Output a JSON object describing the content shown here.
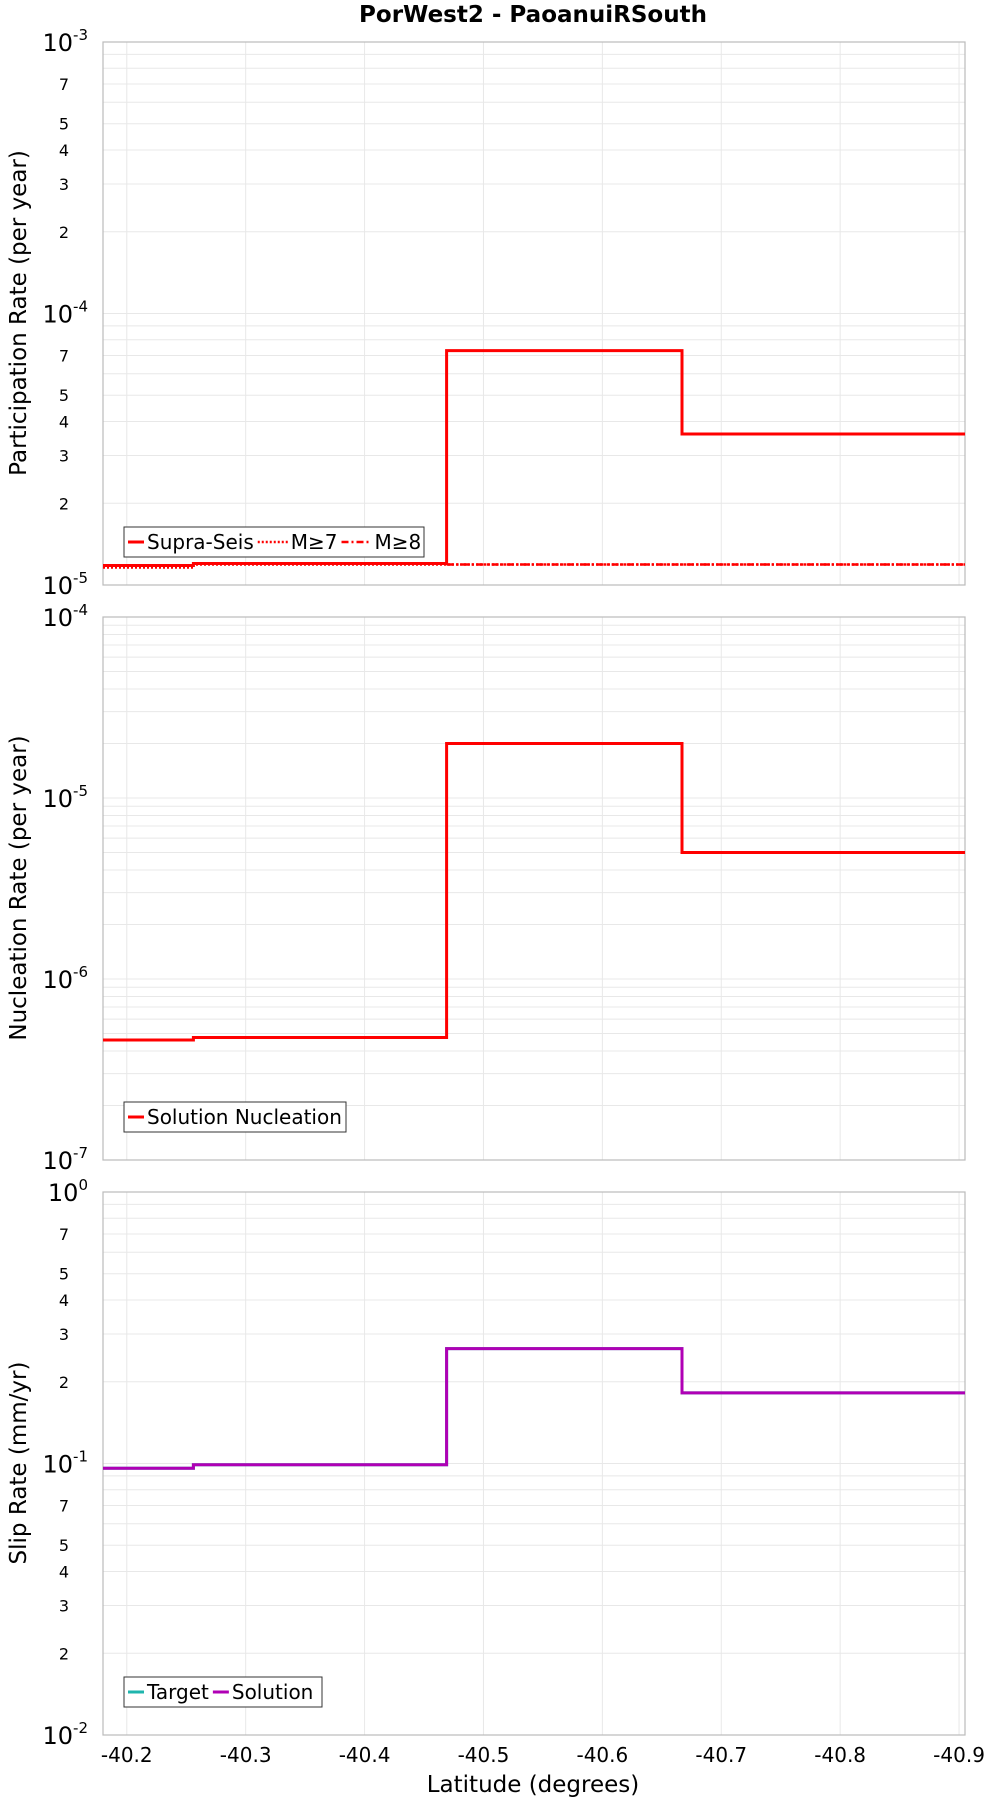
{
  "title": "PorWest2 - PaoanuiRSouth",
  "xlabel": "Latitude (degrees)",
  "x_ticks": [
    -40.2,
    -40.3,
    -40.4,
    -40.5,
    -40.6,
    -40.7,
    -40.8,
    -40.9
  ],
  "x_tick_labels": [
    "-40.2",
    "-40.3",
    "-40.4",
    "-40.5",
    "-40.6",
    "-40.7",
    "-40.8",
    "-40.9"
  ],
  "colors": {
    "red": "#ff0000",
    "pink": "#f4a0a0",
    "teal": "#1fb5ad",
    "purple": "#b000b5",
    "grid": "#e8e8e8",
    "frame": "#bbbbbb"
  },
  "chart_data": [
    {
      "type": "line",
      "step": true,
      "ylabel": "Participation Rate (per year)",
      "yscale": "log",
      "ylim": [
        1e-05,
        0.001
      ],
      "xlim": [
        -40.18,
        -40.905
      ],
      "y_major_ticks": [
        {
          "base": "10",
          "exp": "-5",
          "value": 1e-05
        },
        {
          "base": "10",
          "exp": "-4",
          "value": 0.0001
        },
        {
          "base": "10",
          "exp": "-3",
          "value": 0.001
        }
      ],
      "y_minor_labels": [
        "2",
        "3",
        "4",
        "5",
        "7"
      ],
      "legend": {
        "position": "bottom-left",
        "entries": [
          "Supra-Seis",
          "M≥7",
          "M≥8"
        ]
      },
      "series": [
        {
          "name": "Supra-Seis",
          "style": "solid",
          "color": "#ff0000",
          "x": [
            -40.18,
            -40.256,
            -40.256,
            -40.469,
            -40.469,
            -40.667,
            -40.667,
            -40.905
          ],
          "y": [
            1.18e-05,
            1.18e-05,
            1.2e-05,
            1.2e-05,
            7.3e-05,
            7.3e-05,
            3.6e-05,
            3.6e-05
          ]
        },
        {
          "name": "M≥7",
          "style": "dotted",
          "color": "#ff0000",
          "x": [
            -40.18,
            -40.256,
            -40.256,
            -40.469,
            -40.469,
            -40.905
          ],
          "y": [
            1.16e-05,
            1.16e-05,
            1.19e-05,
            1.19e-05,
            1.19e-05,
            1.19e-05
          ]
        },
        {
          "name": "M≥8",
          "style": "dashdot",
          "color": "#ff0000",
          "x": [
            -40.469,
            -40.905
          ],
          "y": [
            1.19e-05,
            1.19e-05
          ]
        }
      ]
    },
    {
      "type": "line",
      "step": true,
      "ylabel": "Nucleation Rate (per year)",
      "yscale": "log",
      "ylim": [
        1e-07,
        0.0001
      ],
      "xlim": [
        -40.18,
        -40.905
      ],
      "y_major_ticks": [
        {
          "base": "10",
          "exp": "-7",
          "value": 1e-07
        },
        {
          "base": "10",
          "exp": "-6",
          "value": 1e-06
        },
        {
          "base": "10",
          "exp": "-5",
          "value": 1e-05
        },
        {
          "base": "10",
          "exp": "-4",
          "value": 0.0001
        }
      ],
      "y_minor_labels": [],
      "legend": {
        "position": "bottom-left",
        "entries": [
          "Solution Nucleation"
        ]
      },
      "series": [
        {
          "name": "Solution Nucleation",
          "style": "solid",
          "color": "#ff0000",
          "x": [
            -40.18,
            -40.256,
            -40.256,
            -40.469,
            -40.469,
            -40.667,
            -40.667,
            -40.905
          ],
          "y": [
            4.6e-07,
            4.6e-07,
            4.75e-07,
            4.75e-07,
            2e-05,
            2e-05,
            5e-06,
            5e-06
          ]
        }
      ]
    },
    {
      "type": "line",
      "step": true,
      "ylabel": "Slip Rate (mm/yr)",
      "yscale": "log",
      "ylim": [
        0.01,
        1
      ],
      "xlim": [
        -40.18,
        -40.905
      ],
      "y_major_ticks": [
        {
          "base": "10",
          "exp": "-2",
          "value": 0.01
        },
        {
          "base": "10",
          "exp": "-1",
          "value": 0.1
        },
        {
          "base": "10",
          "exp": "0",
          "value": 1
        }
      ],
      "y_minor_labels": [
        "2",
        "3",
        "4",
        "5",
        "7"
      ],
      "legend": {
        "position": "bottom-left",
        "entries": [
          "Target",
          "Solution"
        ]
      },
      "series": [
        {
          "name": "Target",
          "style": "solid",
          "color": "#1fb5ad",
          "x": [
            -40.18,
            -40.256,
            -40.256,
            -40.469,
            -40.469,
            -40.667,
            -40.667,
            -40.905
          ],
          "y": [
            0.096,
            0.096,
            0.099,
            0.099,
            0.265,
            0.265,
            0.182,
            0.182
          ]
        },
        {
          "name": "Solution",
          "style": "solid",
          "color": "#b000b5",
          "x": [
            -40.18,
            -40.256,
            -40.256,
            -40.469,
            -40.469,
            -40.667,
            -40.667,
            -40.905
          ],
          "y": [
            0.096,
            0.096,
            0.099,
            0.099,
            0.265,
            0.265,
            0.182,
            0.182
          ]
        }
      ]
    }
  ]
}
